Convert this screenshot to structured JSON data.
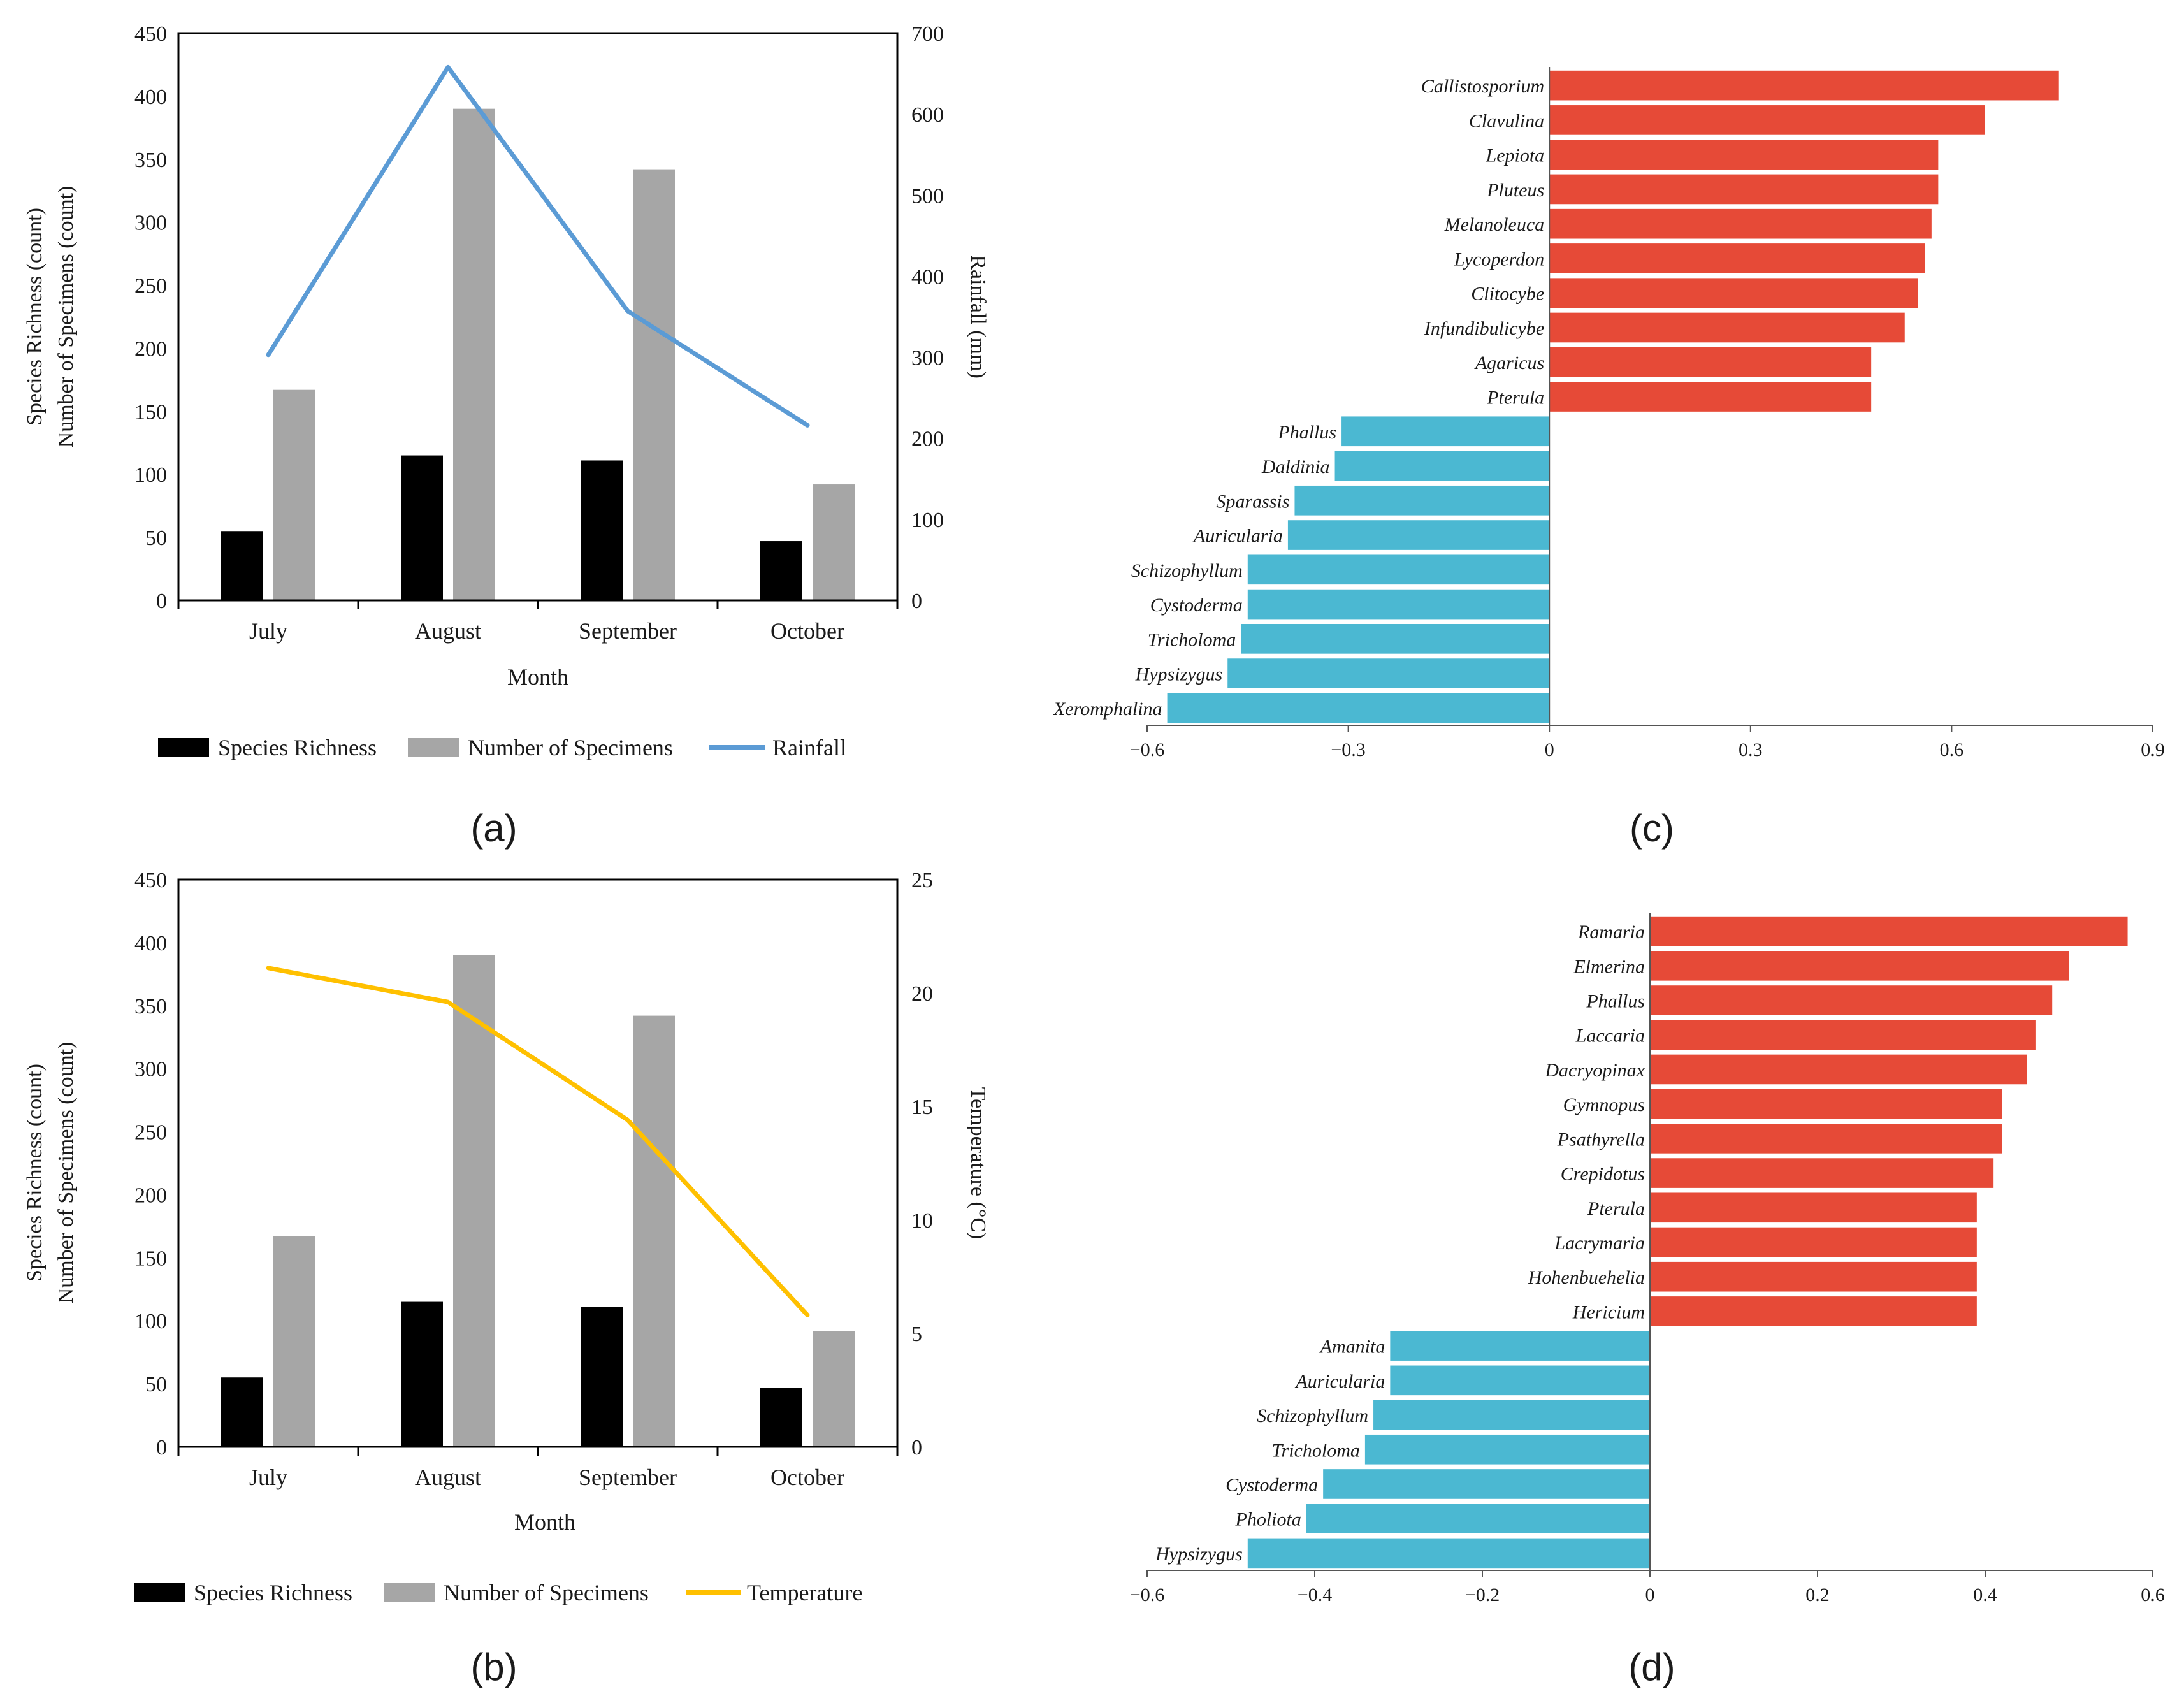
{
  "colors": {
    "species_richness": "#000000",
    "specimens": "#a6a6a6",
    "rainfall": "#5b9bd5",
    "temperature": "#ffc000",
    "positive": "#e64a37",
    "negative": "#4bb8d2",
    "axis": "#000000"
  },
  "chart_data": [
    {
      "panel": "(a)",
      "type": "bar",
      "categories": [
        "July",
        "August",
        "September",
        "October"
      ],
      "series": [
        {
          "name": "Species Richness",
          "axis": "left",
          "kind": "bar",
          "values": [
            55,
            115,
            111,
            47
          ]
        },
        {
          "name": "Number of Specimens",
          "axis": "left",
          "kind": "bar",
          "values": [
            167,
            390,
            342,
            92
          ]
        },
        {
          "name": "Rainfall",
          "axis": "right",
          "kind": "line",
          "values": [
            303,
            658,
            357,
            216
          ]
        }
      ],
      "xlabel": "Month",
      "ylabel_lines": [
        "Species Richness (count)",
        "Number of Specimens (count)"
      ],
      "y2label": "Rainfall (mm)",
      "ylim": [
        0,
        450
      ],
      "y2lim": [
        0,
        700
      ],
      "yticks": [
        "0",
        "50",
        "100",
        "150",
        "200",
        "250",
        "300",
        "350",
        "400",
        "450"
      ],
      "y2ticks": [
        "0",
        "100",
        "200",
        "300",
        "400",
        "500",
        "600",
        "700"
      ],
      "legend_position": "bottom"
    },
    {
      "panel": "(b)",
      "type": "bar",
      "categories": [
        "July",
        "August",
        "September",
        "October"
      ],
      "series": [
        {
          "name": "Species Richness",
          "axis": "left",
          "kind": "bar",
          "values": [
            55,
            115,
            111,
            47
          ]
        },
        {
          "name": "Number of Specimens",
          "axis": "left",
          "kind": "bar",
          "values": [
            167,
            390,
            342,
            92
          ]
        },
        {
          "name": "Temperature",
          "axis": "right",
          "kind": "line",
          "values": [
            21.1,
            19.6,
            14.4,
            5.8
          ]
        }
      ],
      "xlabel": "Month",
      "ylabel_lines": [
        "Species Richness (count)",
        "Number of Specimens (count)"
      ],
      "y2label": "Temperature (°C)",
      "ylim": [
        0,
        450
      ],
      "y2lim": [
        0,
        25
      ],
      "yticks": [
        "0",
        "50",
        "100",
        "150",
        "200",
        "250",
        "300",
        "350",
        "400",
        "450"
      ],
      "y2ticks": [
        "0",
        "5",
        "10",
        "15",
        "20",
        "25"
      ],
      "legend_position": "bottom"
    },
    {
      "panel": "(c)",
      "type": "hbar",
      "categories": [
        "Callistosporium",
        "Clavulina",
        "Lepiota",
        "Pluteus",
        "Melanoleuca",
        "Lycoperdon",
        "Clitocybe",
        "Infundibulicybe",
        "Agaricus",
        "Pterula",
        "Phallus",
        "Daldinia",
        "Sparassis",
        "Auricularia",
        "Schizophyllum",
        "Cystoderma",
        "Tricholoma",
        "Hypsizygus",
        "Xeromphalina"
      ],
      "values": [
        0.76,
        0.65,
        0.58,
        0.58,
        0.57,
        0.56,
        0.55,
        0.53,
        0.48,
        0.48,
        -0.31,
        -0.32,
        -0.38,
        -0.39,
        -0.45,
        -0.45,
        -0.46,
        -0.48,
        -0.57
      ],
      "xlim": [
        -0.6,
        0.9
      ],
      "xticks": [
        -0.6,
        -0.3,
        0,
        0.3,
        0.6,
        0.9
      ],
      "xtick_labels": [
        "−0.6",
        "−0.3",
        "0",
        "0.3",
        "0.6",
        "0.9"
      ]
    },
    {
      "panel": "(d)",
      "type": "hbar",
      "categories": [
        "Ramaria",
        "Elmerina",
        "Phallus",
        "Laccaria",
        "Dacryopinax",
        "Gymnopus",
        "Psathyrella",
        "Crepidotus",
        "Pterula",
        "Lacrymaria",
        "Hohenbuehelia",
        "Hericium",
        "Amanita",
        "Auricularia",
        "Schizophyllum",
        "Tricholoma",
        "Cystoderma",
        "Pholiota",
        "Hypsizygus"
      ],
      "values": [
        0.57,
        0.5,
        0.48,
        0.46,
        0.45,
        0.42,
        0.42,
        0.41,
        0.39,
        0.39,
        0.39,
        0.39,
        -0.31,
        -0.31,
        -0.33,
        -0.34,
        -0.39,
        -0.41,
        -0.48
      ],
      "xlim": [
        -0.6,
        0.6
      ],
      "xticks": [
        -0.6,
        -0.4,
        -0.2,
        0,
        0.2,
        0.4,
        0.6
      ],
      "xtick_labels": [
        "−0.6",
        "−0.4",
        "−0.2",
        "0",
        "0.2",
        "0.4",
        "0.6"
      ]
    }
  ]
}
